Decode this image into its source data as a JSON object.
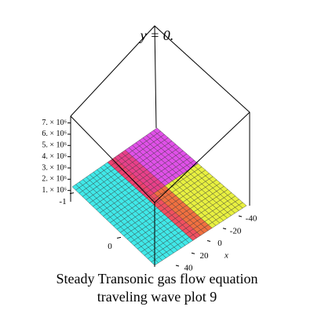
{
  "chart_data": {
    "type": "surface3d",
    "title": "y = 0.",
    "caption": [
      "Steady Transonic gas flow equation",
      "traveling wave plot 9"
    ],
    "zlim": [
      0,
      7600000
    ],
    "zticks": [
      {
        "value": 1000000,
        "label": "1. × 10⁶"
      },
      {
        "value": 2000000,
        "label": "2. × 10⁶"
      },
      {
        "value": 3000000,
        "label": "3. × 10⁶"
      },
      {
        "value": 4000000,
        "label": "4. × 10⁶"
      },
      {
        "value": 5000000,
        "label": "5. × 10⁶"
      },
      {
        "value": 6000000,
        "label": "6. × 10⁶"
      },
      {
        "value": 7000000,
        "label": "7. × 10⁶"
      }
    ],
    "xlabel": "x",
    "xlim": [
      40,
      -40
    ],
    "xticks": [
      -40,
      -20,
      0,
      20,
      40
    ],
    "tlim": [
      -1.1,
      0.7
    ],
    "tticks": [
      -1,
      0
    ]
  }
}
